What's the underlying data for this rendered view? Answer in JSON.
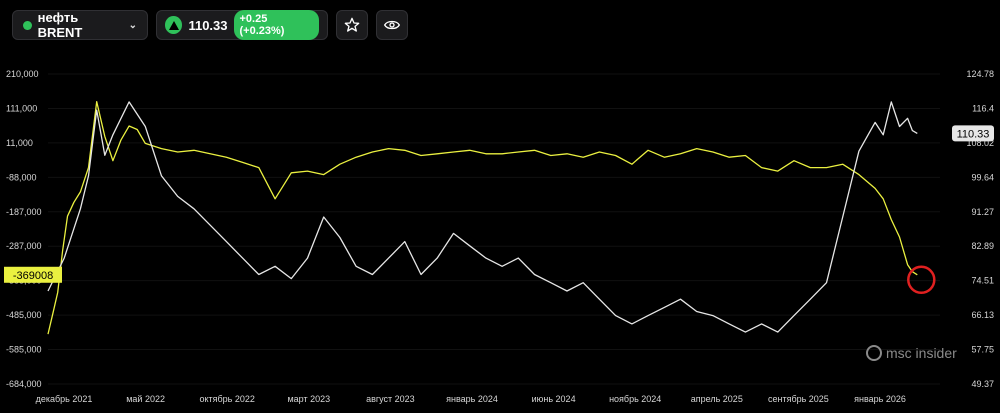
{
  "toolbar": {
    "symbol": "нефть BRENT",
    "price": "110.33",
    "change": "+0.25 (+0.23%)",
    "up_color": "#2fc15a",
    "star_icon": "star-icon",
    "eye_icon": "eye-icon"
  },
  "watermark": "msc insider",
  "chart_data": {
    "type": "line",
    "x_ticks": [
      "декабрь 2021",
      "май 2022",
      "октябрь 2022",
      "март 2023",
      "август 2023",
      "январь 2024",
      "июнь 2024",
      "ноябрь 2024",
      "апрель 2025",
      "сентябрь 2025",
      "январь 2026"
    ],
    "left_axis": {
      "ticks": [
        "210,000",
        "111,000",
        "11,000",
        "-88,000",
        "-187,000",
        "-287,000",
        "-385,000",
        "-485,000",
        "-585,000",
        "-684,000"
      ],
      "range": [
        -684000,
        210000
      ]
    },
    "right_axis": {
      "ticks": [
        "124.78",
        "116.4",
        "108.02",
        "99.64",
        "91.27",
        "82.89",
        "74.51",
        "66.13",
        "57.75",
        "49.37"
      ],
      "range": [
        49.37,
        124.78
      ]
    },
    "left_last_value_label": "-369008",
    "right_last_value_label": "110.33",
    "series": [
      {
        "axis": "left",
        "color": "#eaf040",
        "x": [
          0,
          0.3,
          0.6,
          0.9,
          1.2,
          1.6,
          2,
          2.5,
          3,
          3.5,
          4,
          4.5,
          5,
          5.5,
          6,
          7,
          8,
          9,
          10,
          11,
          12,
          13,
          14,
          15,
          16,
          17,
          18,
          19,
          20,
          21,
          22,
          23,
          24,
          25,
          26,
          27,
          28,
          29,
          30,
          31,
          32,
          33,
          34,
          35,
          36,
          37,
          38,
          39,
          40,
          41,
          42,
          43,
          44,
          45,
          46,
          47,
          48,
          49,
          50,
          51,
          51.5,
          52,
          52.5,
          53,
          53.3,
          53.6
        ],
        "values": [
          -540000,
          -480000,
          -420000,
          -300000,
          -200000,
          -160000,
          -130000,
          -60000,
          130000,
          30000,
          -40000,
          20000,
          60000,
          50000,
          10000,
          -5000,
          -15000,
          -10000,
          -20000,
          -30000,
          -45000,
          -60000,
          -150000,
          -75000,
          -70000,
          -80000,
          -50000,
          -30000,
          -15000,
          -5000,
          -10000,
          -25000,
          -20000,
          -15000,
          -10000,
          -20000,
          -20000,
          -15000,
          -10000,
          -25000,
          -20000,
          -30000,
          -15000,
          -25000,
          -50000,
          -10000,
          -30000,
          -20000,
          -5000,
          -15000,
          -30000,
          -25000,
          -60000,
          -70000,
          -40000,
          -60000,
          -60000,
          -50000,
          -80000,
          -120000,
          -150000,
          -210000,
          -260000,
          -340000,
          -360000,
          -369008
        ]
      },
      {
        "axis": "right",
        "color": "#e6e6e6",
        "x": [
          0,
          1,
          2,
          2.5,
          3,
          3.5,
          4,
          5,
          6,
          7,
          8,
          9,
          10,
          11,
          12,
          13,
          14,
          15,
          16,
          17,
          18,
          19,
          20,
          21,
          22,
          23,
          24,
          25,
          26,
          27,
          28,
          29,
          30,
          31,
          32,
          33,
          34,
          35,
          36,
          37,
          38,
          39,
          40,
          41,
          42,
          43,
          44,
          45,
          46,
          47,
          48,
          49,
          50,
          51,
          51.5,
          52,
          52.5,
          53,
          53.3,
          53.6
        ],
        "values": [
          72,
          80,
          92,
          100,
          116,
          105,
          110,
          118,
          112,
          100,
          95,
          92,
          88,
          84,
          80,
          76,
          78,
          75,
          80,
          90,
          85,
          78,
          76,
          80,
          84,
          76,
          80,
          86,
          83,
          80,
          78,
          80,
          76,
          74,
          72,
          74,
          70,
          66,
          64,
          66,
          68,
          70,
          67,
          66,
          64,
          62,
          64,
          62,
          66,
          70,
          74,
          90,
          106,
          113,
          110,
          118,
          112,
          114,
          111,
          110.33
        ]
      }
    ]
  }
}
